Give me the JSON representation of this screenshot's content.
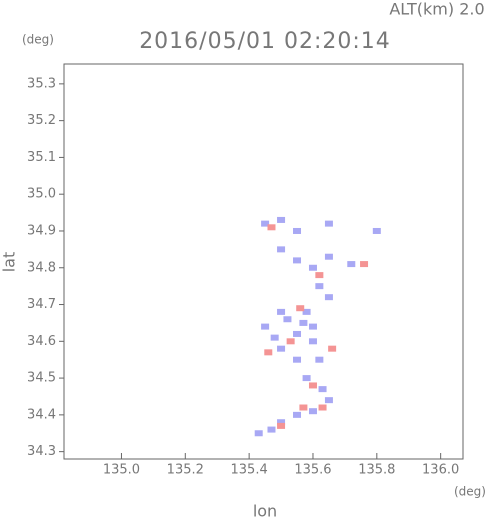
{
  "chart_data": {
    "type": "scatter",
    "title": "2016/05/01 02:20:14",
    "subtitle": "ALT(km) 2.0",
    "x_label": "lon",
    "y_label": "lat",
    "x_unit": "(deg)",
    "y_unit": "(deg)",
    "xlim": [
      134.82,
      136.07
    ],
    "ylim": [
      34.28,
      35.354
    ],
    "xticks": [
      {
        "value": 135.0,
        "label": "135.0"
      },
      135.2,
      135.4,
      135.6,
      135.8,
      {
        "value": 136.0,
        "label": "136.0"
      }
    ],
    "yticks": [
      35.3,
      35.2,
      35.1,
      {
        "value": 35.0,
        "label": "35.0"
      },
      34.9,
      34.8,
      34.7,
      34.6,
      34.5,
      34.4,
      34.3
    ],
    "series": [
      {
        "color": "#a8a8f4",
        "x": [
          135.45,
          135.5,
          135.55,
          135.65,
          135.8,
          135.5,
          135.55,
          135.6,
          135.65,
          135.72,
          135.62,
          135.65,
          135.58,
          135.5,
          135.45,
          135.55,
          135.6,
          135.5,
          135.55,
          135.62,
          135.58,
          135.63,
          135.65,
          135.6,
          135.55,
          135.5,
          135.47,
          135.43,
          135.52,
          135.57,
          135.48,
          135.6
        ],
        "y": [
          34.92,
          34.93,
          34.9,
          34.92,
          34.9,
          34.85,
          34.82,
          34.8,
          34.83,
          34.81,
          34.75,
          34.72,
          34.68,
          34.68,
          34.64,
          34.62,
          34.6,
          34.58,
          34.55,
          34.55,
          34.5,
          34.47,
          34.44,
          34.41,
          34.4,
          34.38,
          34.36,
          34.35,
          34.66,
          34.65,
          34.61,
          34.64
        ]
      },
      {
        "color": "#f49494",
        "x": [
          135.47,
          135.62,
          135.76,
          135.53,
          135.6,
          135.57,
          135.5,
          135.63,
          135.46,
          135.56,
          135.66
        ],
        "y": [
          34.91,
          34.78,
          34.81,
          34.6,
          34.48,
          34.42,
          34.37,
          34.42,
          34.57,
          34.69,
          34.58
        ]
      }
    ]
  }
}
